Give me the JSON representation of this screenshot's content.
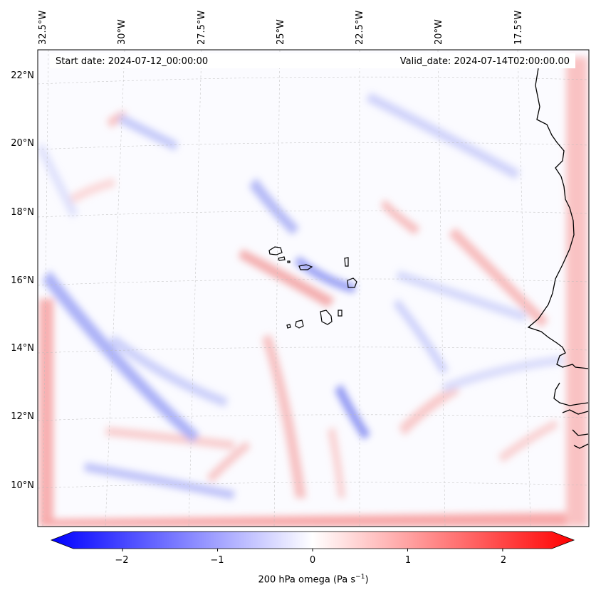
{
  "header": {
    "start_date": "Start date: 2024-07-12_00:00:00",
    "valid_date": "Valid_date: 2024-07-14T02:00:00.00"
  },
  "lon_labels": [
    "32.5°W",
    "30°W",
    "27.5°W",
    "25°W",
    "22.5°W",
    "20°W",
    "17.5°W"
  ],
  "lat_labels": [
    "22°N",
    "20°N",
    "18°N",
    "16°N",
    "14°N",
    "12°N",
    "10°N"
  ],
  "colorbar": {
    "tick_labels": [
      "−2",
      "−1",
      "0",
      "1",
      "2"
    ],
    "tick_values": [
      -2,
      -1,
      0,
      1,
      2
    ],
    "range": [
      -2.75,
      2.75
    ],
    "label_prefix": "200 hPa omega (Pa s",
    "label_sup": "−1",
    "label_suffix": ")",
    "colors": {
      "negative": "#0000ff",
      "zero": "#ffffff",
      "positive": "#ff0000"
    },
    "extend": "both"
  },
  "map": {
    "field": "200 hPa omega",
    "colormap": "bwr",
    "coastline_color": "#000000",
    "gridlines": "dashed gray"
  }
}
